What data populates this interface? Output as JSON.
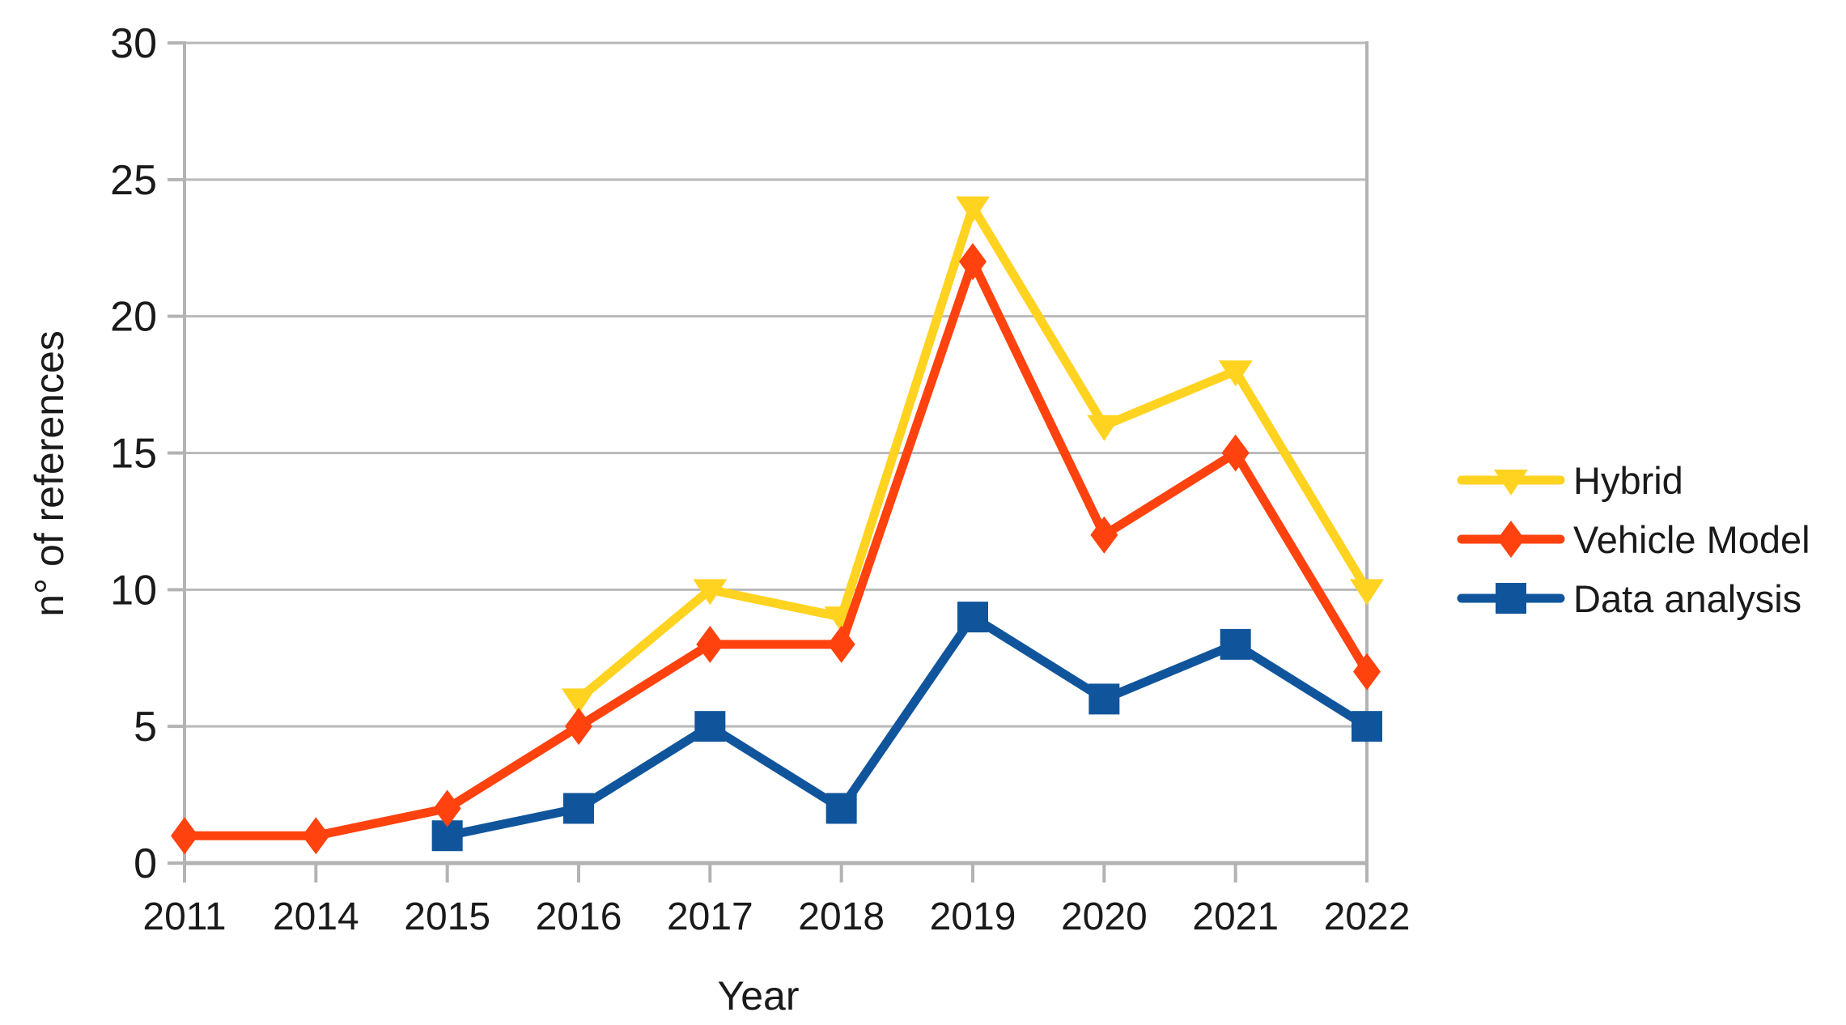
{
  "chart_data": {
    "type": "line",
    "categories": [
      "2011",
      "2014",
      "2015",
      "2016",
      "2017",
      "2018",
      "2019",
      "2020",
      "2021",
      "2022"
    ],
    "series": [
      {
        "name": "Hybrid",
        "color": "#FFD320",
        "marker": "triangle-down",
        "values": [
          null,
          null,
          null,
          6,
          10,
          9,
          24,
          16,
          18,
          10
        ]
      },
      {
        "name": "Vehicle Model",
        "color": "#FF420E",
        "marker": "diamond",
        "values": [
          1,
          1,
          2,
          5,
          8,
          8,
          22,
          12,
          15,
          7
        ]
      },
      {
        "name": "Data analysis",
        "color": "#10559C",
        "marker": "square",
        "values": [
          null,
          null,
          1,
          2,
          5,
          2,
          9,
          6,
          8,
          5
        ]
      }
    ],
    "xlabel": "Year",
    "ylabel": "n° of references",
    "ylim": [
      0,
      30
    ],
    "ytick_step": 5,
    "yticks": [
      0,
      5,
      10,
      15,
      20,
      25,
      30
    ],
    "grid": "horizontal",
    "legend_position": "right"
  },
  "colors": {
    "background": "#ffffff",
    "gridline": "#b9b9b9",
    "axis": "#b3b3b3",
    "text": "#1a1a1a"
  }
}
